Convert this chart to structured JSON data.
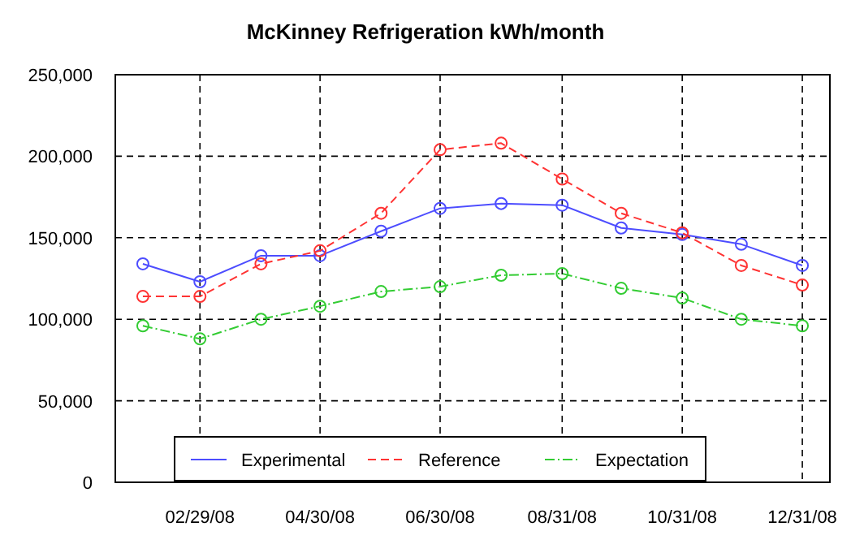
{
  "chart_data": {
    "type": "line",
    "title": "McKinney Refrigeration kWh/month",
    "x": [
      "2008-01-31",
      "2008-02-29",
      "2008-03-31",
      "2008-04-30",
      "2008-05-31",
      "2008-06-30",
      "2008-07-31",
      "2008-08-31",
      "2008-09-30",
      "2008-10-31",
      "2008-11-30",
      "2008-12-31"
    ],
    "series": [
      {
        "name": "Experimental",
        "color": "#4d4dff",
        "line_style": "solid",
        "values": [
          134000,
          123000,
          139000,
          139000,
          154000,
          168000,
          171000,
          170000,
          156000,
          152000,
          146000,
          133000
        ]
      },
      {
        "name": "Reference",
        "color": "#ff3333",
        "line_style": "dashed",
        "values": [
          114000,
          114000,
          134000,
          142000,
          165000,
          204000,
          208000,
          186000,
          165000,
          153000,
          133000,
          121000
        ]
      },
      {
        "name": "Expectation",
        "color": "#33cc33",
        "line_style": "dotted",
        "values": [
          96000,
          88000,
          100000,
          108000,
          117000,
          120000,
          127000,
          128000,
          119000,
          113000,
          100000,
          96000
        ]
      }
    ],
    "xlim": [
      "2008-01-17",
      "2009-01-14"
    ],
    "xticks": [
      {
        "value": "2008-02-29",
        "label": "02/29/08"
      },
      {
        "value": "2008-04-30",
        "label": "04/30/08"
      },
      {
        "value": "2008-06-30",
        "label": "06/30/08"
      },
      {
        "value": "2008-08-31",
        "label": "08/31/08"
      },
      {
        "value": "2008-10-31",
        "label": "10/31/08"
      },
      {
        "value": "2008-12-31",
        "label": "12/31/08"
      }
    ],
    "ylim": [
      0,
      250000
    ],
    "yticks": [
      {
        "value": 0,
        "label": "0"
      },
      {
        "value": 50000,
        "label": "50,000"
      },
      {
        "value": 100000,
        "label": "100,000"
      },
      {
        "value": 150000,
        "label": "150,000"
      },
      {
        "value": 200000,
        "label": "200,000"
      },
      {
        "value": 250000,
        "label": "250,000"
      }
    ],
    "grid": true,
    "legend": "bottom",
    "marker": "circle"
  }
}
